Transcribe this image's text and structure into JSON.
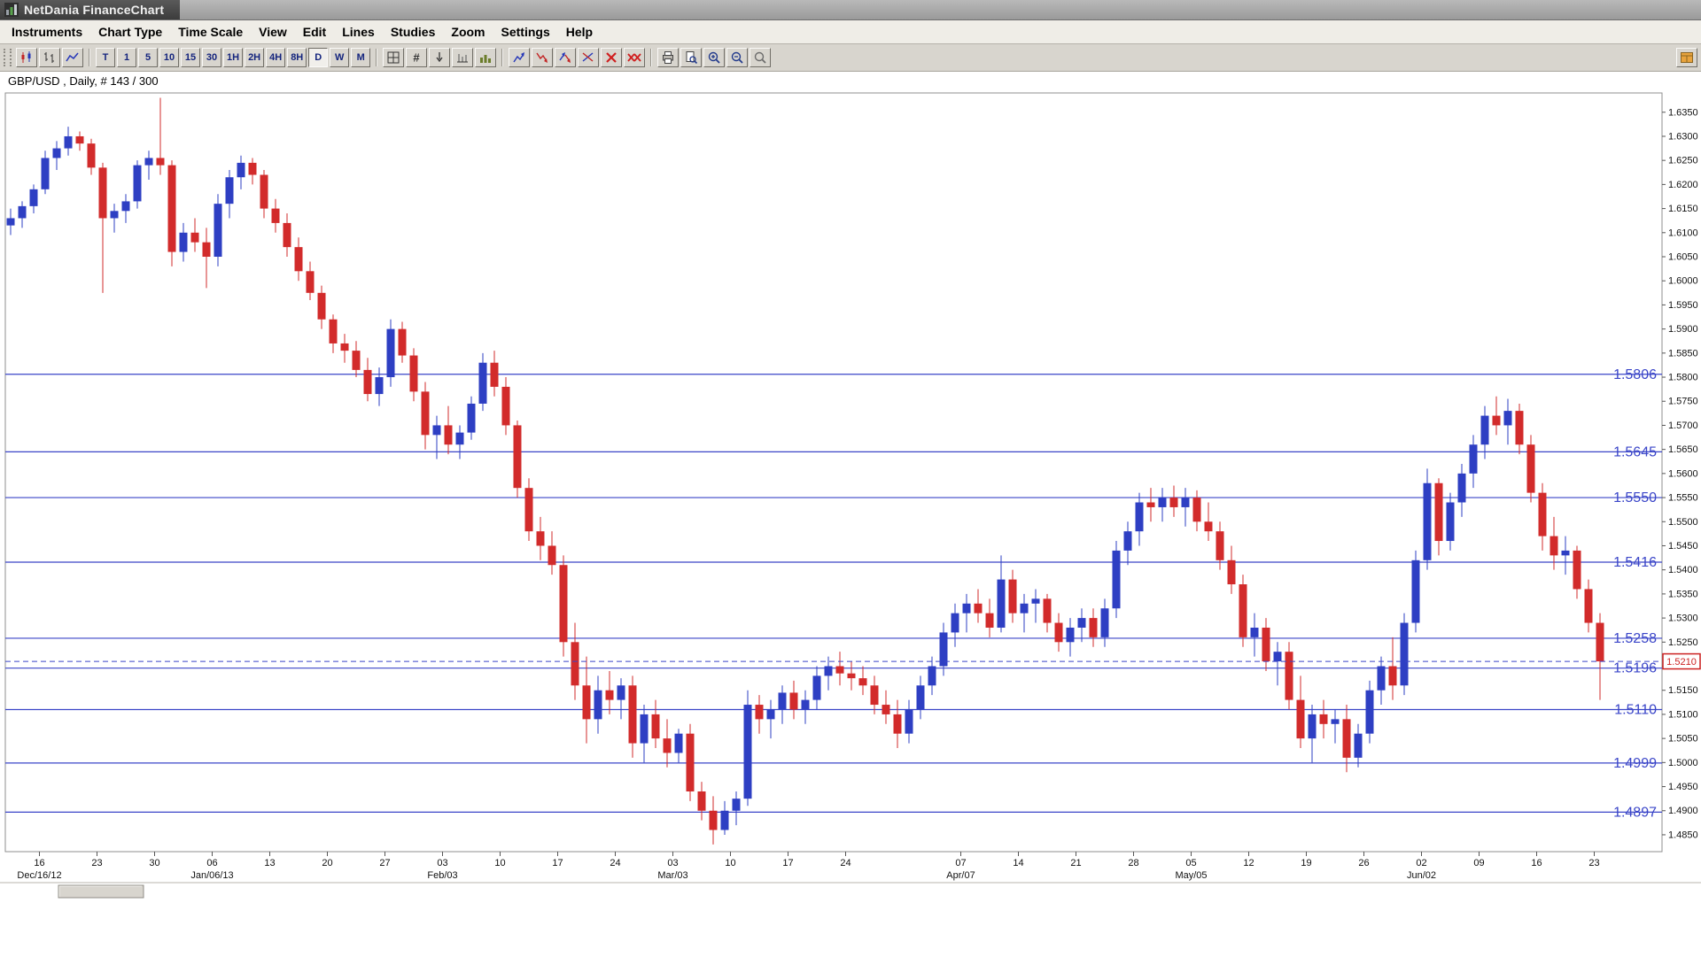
{
  "window": {
    "title": "NetDania FinanceChart"
  },
  "menu": {
    "items": [
      "Instruments",
      "Chart Type",
      "Time Scale",
      "View",
      "Edit",
      "Lines",
      "Studies",
      "Zoom",
      "Settings",
      "Help"
    ]
  },
  "toolbar": {
    "timeframes": [
      "T",
      "1",
      "5",
      "10",
      "15",
      "30",
      "1H",
      "2H",
      "4H",
      "8H",
      "D",
      "W",
      "M"
    ],
    "selected_timeframe": "D",
    "hash_glyph": "#"
  },
  "chart": {
    "symbol_label": "GBP/USD , Daily, # 143 / 300",
    "current_price": 1.521,
    "colors": {
      "up": "#2e3fc3",
      "down": "#d22b2b",
      "level": "#3a45c8",
      "badge": "#cc2222",
      "axis_text": "#111111"
    },
    "levels": [
      {
        "value": 1.5806,
        "label": "1.5806"
      },
      {
        "value": 1.5645,
        "label": "1.5645"
      },
      {
        "value": 1.555,
        "label": "1.5550"
      },
      {
        "value": 1.5416,
        "label": "1.5416"
      },
      {
        "value": 1.5258,
        "label": "1.5258"
      },
      {
        "value": 1.5196,
        "label": "1.5196"
      },
      {
        "value": 1.511,
        "label": "1.5110"
      },
      {
        "value": 1.4999,
        "label": "1.4999"
      },
      {
        "value": 1.4897,
        "label": "1.4897"
      }
    ]
  },
  "chart_data": {
    "type": "candlestick",
    "title": "GBP/USD Daily",
    "symbol": "GBP/USD",
    "interval": "Daily",
    "visible_count_label": "# 143 / 300",
    "ylim": [
      1.485,
      1.635
    ],
    "ytick_step": 0.005,
    "week_labels": [
      {
        "i": 0,
        "w": "16",
        "m": "Dec/16/12"
      },
      {
        "i": 5,
        "w": "23"
      },
      {
        "i": 10,
        "w": "30"
      },
      {
        "i": 15,
        "w": "06",
        "m": "Jan/06/13"
      },
      {
        "i": 20,
        "w": "13"
      },
      {
        "i": 25,
        "w": "20"
      },
      {
        "i": 30,
        "w": "27"
      },
      {
        "i": 35,
        "w": "03",
        "m": "Feb/03"
      },
      {
        "i": 40,
        "w": "10"
      },
      {
        "i": 45,
        "w": "17"
      },
      {
        "i": 50,
        "w": "24"
      },
      {
        "i": 55,
        "w": "03",
        "m": "Mar/03"
      },
      {
        "i": 60,
        "w": "10"
      },
      {
        "i": 65,
        "w": "17"
      },
      {
        "i": 70,
        "w": "24"
      },
      {
        "i": 80,
        "w": "07",
        "m": "Apr/07"
      },
      {
        "i": 85,
        "w": "14"
      },
      {
        "i": 90,
        "w": "21"
      },
      {
        "i": 95,
        "w": "28"
      },
      {
        "i": 100,
        "w": "05",
        "m": "May/05"
      },
      {
        "i": 105,
        "w": "12"
      },
      {
        "i": 110,
        "w": "19"
      },
      {
        "i": 115,
        "w": "26"
      },
      {
        "i": 120,
        "w": "02",
        "m": "Jun/02"
      },
      {
        "i": 125,
        "w": "09"
      },
      {
        "i": 130,
        "w": "16"
      },
      {
        "i": 135,
        "w": "23"
      }
    ],
    "candles": [
      [
        1.6115,
        1.615,
        1.6095,
        1.613
      ],
      [
        1.613,
        1.6165,
        1.611,
        1.6155
      ],
      [
        1.6155,
        1.62,
        1.614,
        1.619
      ],
      [
        1.619,
        1.627,
        1.618,
        1.6255
      ],
      [
        1.6255,
        1.629,
        1.623,
        1.6275
      ],
      [
        1.6275,
        1.632,
        1.626,
        1.63
      ],
      [
        1.63,
        1.631,
        1.627,
        1.6285
      ],
      [
        1.6285,
        1.6295,
        1.622,
        1.6235
      ],
      [
        1.6235,
        1.6245,
        1.5975,
        1.613
      ],
      [
        1.613,
        1.616,
        1.61,
        1.6145
      ],
      [
        1.6145,
        1.618,
        1.612,
        1.6165
      ],
      [
        1.6165,
        1.625,
        1.615,
        1.624
      ],
      [
        1.624,
        1.627,
        1.621,
        1.6255
      ],
      [
        1.6255,
        1.638,
        1.622,
        1.624
      ],
      [
        1.624,
        1.625,
        1.603,
        1.606
      ],
      [
        1.606,
        1.612,
        1.604,
        1.61
      ],
      [
        1.61,
        1.613,
        1.606,
        1.608
      ],
      [
        1.608,
        1.611,
        1.5985,
        1.605
      ],
      [
        1.605,
        1.618,
        1.603,
        1.616
      ],
      [
        1.616,
        1.623,
        1.613,
        1.6215
      ],
      [
        1.6215,
        1.626,
        1.619,
        1.6245
      ],
      [
        1.6245,
        1.6255,
        1.62,
        1.622
      ],
      [
        1.622,
        1.623,
        1.613,
        1.615
      ],
      [
        1.615,
        1.617,
        1.61,
        1.612
      ],
      [
        1.612,
        1.614,
        1.605,
        1.607
      ],
      [
        1.607,
        1.609,
        1.6,
        1.602
      ],
      [
        1.602,
        1.604,
        1.596,
        1.5975
      ],
      [
        1.5975,
        1.599,
        1.59,
        1.592
      ],
      [
        1.592,
        1.593,
        1.585,
        1.587
      ],
      [
        1.587,
        1.589,
        1.583,
        1.5855
      ],
      [
        1.5855,
        1.5875,
        1.58,
        1.5815
      ],
      [
        1.5815,
        1.584,
        1.575,
        1.5765
      ],
      [
        1.5765,
        1.582,
        1.574,
        1.58
      ],
      [
        1.58,
        1.592,
        1.578,
        1.59
      ],
      [
        1.59,
        1.5915,
        1.583,
        1.5845
      ],
      [
        1.5845,
        1.586,
        1.575,
        1.577
      ],
      [
        1.577,
        1.579,
        1.565,
        1.568
      ],
      [
        1.568,
        1.572,
        1.563,
        1.57
      ],
      [
        1.57,
        1.574,
        1.564,
        1.566
      ],
      [
        1.566,
        1.57,
        1.563,
        1.5685
      ],
      [
        1.5685,
        1.576,
        1.567,
        1.5745
      ],
      [
        1.5745,
        1.585,
        1.573,
        1.583
      ],
      [
        1.583,
        1.5855,
        1.576,
        1.578
      ],
      [
        1.578,
        1.58,
        1.568,
        1.57
      ],
      [
        1.57,
        1.571,
        1.555,
        1.557
      ],
      [
        1.557,
        1.559,
        1.546,
        1.548
      ],
      [
        1.548,
        1.551,
        1.542,
        1.545
      ],
      [
        1.545,
        1.548,
        1.539,
        1.541
      ],
      [
        1.541,
        1.543,
        1.522,
        1.525
      ],
      [
        1.525,
        1.529,
        1.513,
        1.516
      ],
      [
        1.516,
        1.522,
        1.504,
        1.509
      ],
      [
        1.509,
        1.518,
        1.506,
        1.515
      ],
      [
        1.515,
        1.519,
        1.51,
        1.513
      ],
      [
        1.513,
        1.5175,
        1.509,
        1.516
      ],
      [
        1.516,
        1.518,
        1.501,
        1.504
      ],
      [
        1.504,
        1.512,
        1.5,
        1.51
      ],
      [
        1.51,
        1.513,
        1.503,
        1.505
      ],
      [
        1.505,
        1.509,
        1.499,
        1.502
      ],
      [
        1.502,
        1.507,
        1.5,
        1.506
      ],
      [
        1.506,
        1.508,
        1.492,
        1.494
      ],
      [
        1.494,
        1.496,
        1.488,
        1.49
      ],
      [
        1.49,
        1.493,
        1.483,
        1.486
      ],
      [
        1.486,
        1.492,
        1.485,
        1.49
      ],
      [
        1.49,
        1.494,
        1.487,
        1.4925
      ],
      [
        1.4925,
        1.515,
        1.491,
        1.512
      ],
      [
        1.512,
        1.514,
        1.506,
        1.509
      ],
      [
        1.509,
        1.513,
        1.505,
        1.511
      ],
      [
        1.511,
        1.516,
        1.508,
        1.5145
      ],
      [
        1.5145,
        1.517,
        1.509,
        1.511
      ],
      [
        1.511,
        1.515,
        1.508,
        1.513
      ],
      [
        1.513,
        1.52,
        1.511,
        1.518
      ],
      [
        1.518,
        1.522,
        1.515,
        1.52
      ],
      [
        1.52,
        1.523,
        1.516,
        1.5185
      ],
      [
        1.5185,
        1.521,
        1.515,
        1.5175
      ],
      [
        1.5175,
        1.52,
        1.514,
        1.516
      ],
      [
        1.516,
        1.518,
        1.51,
        1.512
      ],
      [
        1.512,
        1.515,
        1.508,
        1.51
      ],
      [
        1.51,
        1.513,
        1.503,
        1.506
      ],
      [
        1.506,
        1.513,
        1.504,
        1.511
      ],
      [
        1.511,
        1.518,
        1.509,
        1.516
      ],
      [
        1.516,
        1.522,
        1.514,
        1.52
      ],
      [
        1.52,
        1.529,
        1.518,
        1.527
      ],
      [
        1.527,
        1.533,
        1.524,
        1.531
      ],
      [
        1.531,
        1.535,
        1.527,
        1.533
      ],
      [
        1.533,
        1.536,
        1.529,
        1.531
      ],
      [
        1.531,
        1.534,
        1.526,
        1.528
      ],
      [
        1.528,
        1.543,
        1.527,
        1.538
      ],
      [
        1.538,
        1.54,
        1.529,
        1.531
      ],
      [
        1.531,
        1.535,
        1.527,
        1.533
      ],
      [
        1.533,
        1.536,
        1.529,
        1.534
      ],
      [
        1.534,
        1.535,
        1.527,
        1.529
      ],
      [
        1.529,
        1.531,
        1.523,
        1.525
      ],
      [
        1.525,
        1.53,
        1.522,
        1.528
      ],
      [
        1.528,
        1.532,
        1.525,
        1.53
      ],
      [
        1.53,
        1.532,
        1.524,
        1.526
      ],
      [
        1.526,
        1.534,
        1.524,
        1.532
      ],
      [
        1.532,
        1.546,
        1.53,
        1.544
      ],
      [
        1.544,
        1.55,
        1.541,
        1.548
      ],
      [
        1.548,
        1.556,
        1.545,
        1.554
      ],
      [
        1.554,
        1.557,
        1.55,
        1.553
      ],
      [
        1.553,
        1.557,
        1.55,
        1.555
      ],
      [
        1.555,
        1.5575,
        1.551,
        1.553
      ],
      [
        1.553,
        1.557,
        1.549,
        1.555
      ],
      [
        1.555,
        1.5565,
        1.548,
        1.55
      ],
      [
        1.55,
        1.554,
        1.546,
        1.548
      ],
      [
        1.548,
        1.55,
        1.54,
        1.542
      ],
      [
        1.542,
        1.545,
        1.535,
        1.537
      ],
      [
        1.537,
        1.539,
        1.524,
        1.526
      ],
      [
        1.526,
        1.531,
        1.522,
        1.528
      ],
      [
        1.528,
        1.53,
        1.519,
        1.521
      ],
      [
        1.521,
        1.525,
        1.516,
        1.523
      ],
      [
        1.523,
        1.525,
        1.511,
        1.513
      ],
      [
        1.513,
        1.518,
        1.503,
        1.505
      ],
      [
        1.505,
        1.512,
        1.5,
        1.51
      ],
      [
        1.51,
        1.513,
        1.505,
        1.508
      ],
      [
        1.508,
        1.511,
        1.504,
        1.509
      ],
      [
        1.509,
        1.512,
        1.498,
        1.501
      ],
      [
        1.501,
        1.508,
        1.499,
        1.506
      ],
      [
        1.506,
        1.517,
        1.504,
        1.515
      ],
      [
        1.515,
        1.522,
        1.512,
        1.52
      ],
      [
        1.52,
        1.526,
        1.513,
        1.516
      ],
      [
        1.516,
        1.531,
        1.514,
        1.529
      ],
      [
        1.529,
        1.544,
        1.527,
        1.542
      ],
      [
        1.542,
        1.561,
        1.54,
        1.558
      ],
      [
        1.558,
        1.559,
        1.543,
        1.546
      ],
      [
        1.546,
        1.556,
        1.544,
        1.554
      ],
      [
        1.554,
        1.562,
        1.551,
        1.56
      ],
      [
        1.56,
        1.568,
        1.557,
        1.566
      ],
      [
        1.566,
        1.574,
        1.563,
        1.572
      ],
      [
        1.572,
        1.576,
        1.568,
        1.57
      ],
      [
        1.57,
        1.5755,
        1.566,
        1.573
      ],
      [
        1.573,
        1.5745,
        1.564,
        1.566
      ],
      [
        1.566,
        1.568,
        1.554,
        1.556
      ],
      [
        1.556,
        1.558,
        1.544,
        1.547
      ],
      [
        1.547,
        1.551,
        1.54,
        1.543
      ],
      [
        1.543,
        1.547,
        1.539,
        1.544
      ],
      [
        1.544,
        1.545,
        1.534,
        1.536
      ],
      [
        1.536,
        1.538,
        1.527,
        1.529
      ],
      [
        1.529,
        1.531,
        1.513,
        1.521
      ]
    ]
  }
}
